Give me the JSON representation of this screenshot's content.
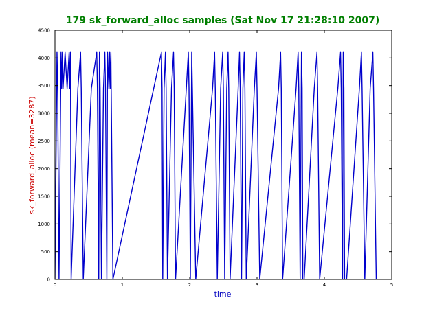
{
  "chart_data": {
    "type": "line",
    "title": "179 sk_forward_alloc samples (Sat Nov 17 21:28:10 2007)",
    "xlabel": "time",
    "ylabel": "sk_forward_alloc (mean=3287)",
    "xlim": [
      0,
      5
    ],
    "ylim": [
      0,
      4500
    ],
    "xticks": [
      0,
      1,
      2,
      3,
      4,
      5
    ],
    "xtick_labels": [
      "0",
      "1",
      "2",
      "3",
      "4",
      "5"
    ],
    "yticks": [
      0,
      500,
      1000,
      1500,
      2000,
      2500,
      3000,
      3500,
      4000,
      4500
    ],
    "ytick_labels": [
      "0",
      "500",
      "1000",
      "1500",
      "2000",
      "2500",
      "3000",
      "3500",
      "4000",
      "4500"
    ],
    "grid": false,
    "legend": "none",
    "colors": {
      "title": "#007f00",
      "xlabel": "#0000bf",
      "ylabel": "#cc0000",
      "line": "#0000cc",
      "axes": "#000000"
    },
    "series": [
      {
        "x": [
          0.0,
          0.03,
          0.04,
          0.06,
          0.09,
          0.1,
          0.11,
          0.12,
          0.15,
          0.18,
          0.21,
          0.22,
          0.23,
          0.24,
          0.34,
          0.38,
          0.39,
          0.42,
          0.54,
          0.62,
          0.63,
          0.65,
          0.66,
          0.67,
          0.69,
          0.72,
          0.74,
          0.75,
          0.77,
          0.78,
          0.8,
          0.81,
          0.82,
          0.83,
          0.86,
          1.58,
          1.59,
          1.6,
          1.62,
          1.64,
          1.65,
          1.67,
          1.73,
          1.76,
          1.77,
          1.79,
          1.95,
          1.98,
          1.99,
          2.01,
          2.03,
          2.04,
          2.09,
          2.34,
          2.37,
          2.38,
          2.41,
          2.46,
          2.49,
          2.5,
          2.52,
          2.55,
          2.57,
          2.58,
          2.6,
          2.72,
          2.74,
          2.75,
          2.77,
          2.79,
          2.81,
          2.82,
          2.84,
          2.96,
          2.99,
          3.0,
          3.04,
          3.32,
          3.35,
          3.36,
          3.38,
          3.58,
          3.61,
          3.62,
          3.64,
          3.66,
          3.67,
          3.68,
          3.7,
          3.85,
          3.89,
          3.9,
          3.93,
          4.2,
          4.24,
          4.25,
          4.27,
          4.28,
          4.29,
          4.3,
          4.33,
          4.52,
          4.55,
          4.56,
          4.6,
          4.68,
          4.72,
          4.73,
          4.77
        ],
        "y": [
          0,
          4100,
          3450,
          0,
          4100,
          3450,
          4100,
          3450,
          4100,
          3450,
          4100,
          3450,
          4100,
          0,
          3450,
          4100,
          3450,
          0,
          3450,
          4100,
          3450,
          0,
          4100,
          3450,
          0,
          3450,
          4100,
          3450,
          0,
          4100,
          3450,
          4100,
          3450,
          4100,
          0,
          4100,
          3450,
          0,
          3450,
          4100,
          3450,
          0,
          3450,
          4100,
          3450,
          0,
          3450,
          4100,
          3450,
          0,
          4100,
          3450,
          0,
          3450,
          4100,
          3450,
          0,
          3450,
          4100,
          3450,
          0,
          3450,
          4100,
          3450,
          0,
          3450,
          4100,
          3450,
          0,
          3450,
          4100,
          3450,
          0,
          3450,
          4100,
          3450,
          0,
          3450,
          4100,
          3450,
          0,
          3450,
          4100,
          3450,
          0,
          4100,
          3450,
          0,
          0,
          3450,
          4100,
          3450,
          0,
          3450,
          4100,
          3450,
          0,
          4100,
          3450,
          0,
          0,
          3450,
          4100,
          3450,
          0,
          3450,
          4100,
          3450,
          0
        ]
      }
    ]
  }
}
